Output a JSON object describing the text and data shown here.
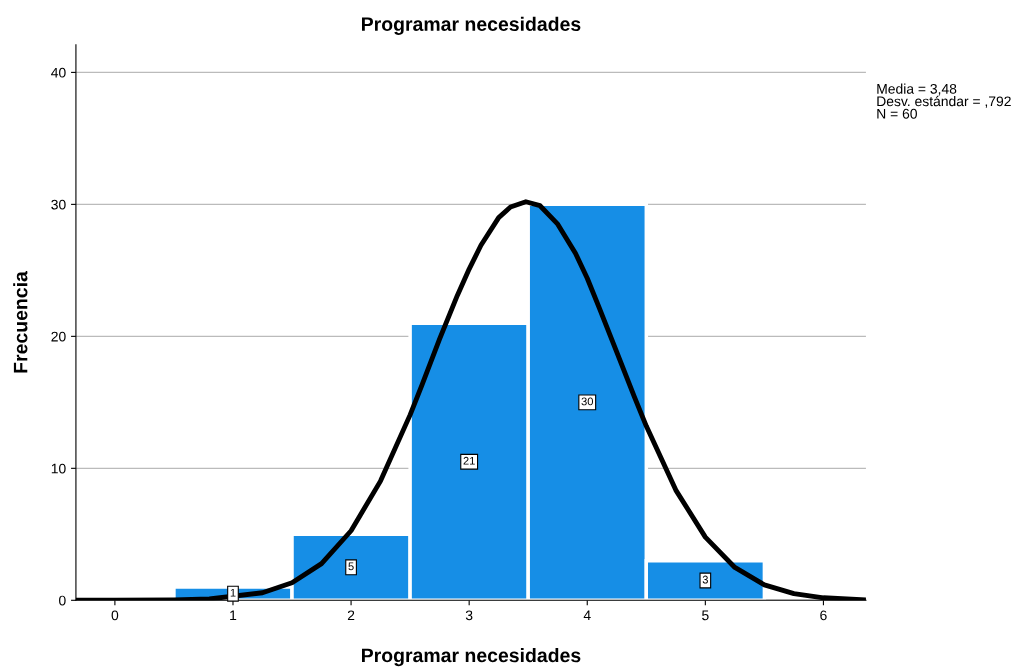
{
  "chart_data": {
    "type": "histogram",
    "title": "Programar necesidades",
    "xlabel": "Programar necesidades",
    "ylabel": "Frecuencia",
    "bins": [
      0.5,
      1.5,
      2.5,
      3.5,
      4.5,
      5.5
    ],
    "values": [
      1,
      5,
      21,
      30,
      3
    ],
    "color": "#168ee6",
    "value_labels": [
      "1",
      "5",
      "21",
      "30",
      "3"
    ],
    "series": [
      {
        "type": "line",
        "color": "#000000",
        "x": [
          -0.33,
          0,
          0.5,
          0.8,
          1.25,
          1.5,
          1.75,
          2,
          2.25,
          2.5,
          2.6,
          2.75,
          2.9,
          3,
          3.1,
          3.25,
          3.35,
          3.48,
          3.6,
          3.75,
          3.9,
          4,
          4.1,
          4.25,
          4.4,
          4.5,
          4.75,
          5,
          5.25,
          5.5,
          5.75,
          6,
          6.35
        ],
        "values": [
          0,
          0,
          0.03,
          0.1,
          0.57,
          1.33,
          2.78,
          5.27,
          9.05,
          14.05,
          16.3,
          19.8,
          23.1,
          25.1,
          26.9,
          29.0,
          29.8,
          30.2,
          29.9,
          28.5,
          26.3,
          24.4,
          22.2,
          18.8,
          15.4,
          13.2,
          8.35,
          4.79,
          2.49,
          1.17,
          0.5,
          0.19,
          0.04
        ]
      }
    ],
    "annotations": [
      "Media = 3,48",
      "Desv. estándar = ,792",
      "N = 60"
    ],
    "xlim": [
      -0.33,
      6.36
    ],
    "ylim": [
      0,
      42.1
    ],
    "xticks": [
      0,
      1,
      2,
      3,
      4,
      5,
      6
    ],
    "yticks": [
      0,
      10,
      20,
      30,
      40
    ],
    "grid": "y",
    "legend": false
  }
}
